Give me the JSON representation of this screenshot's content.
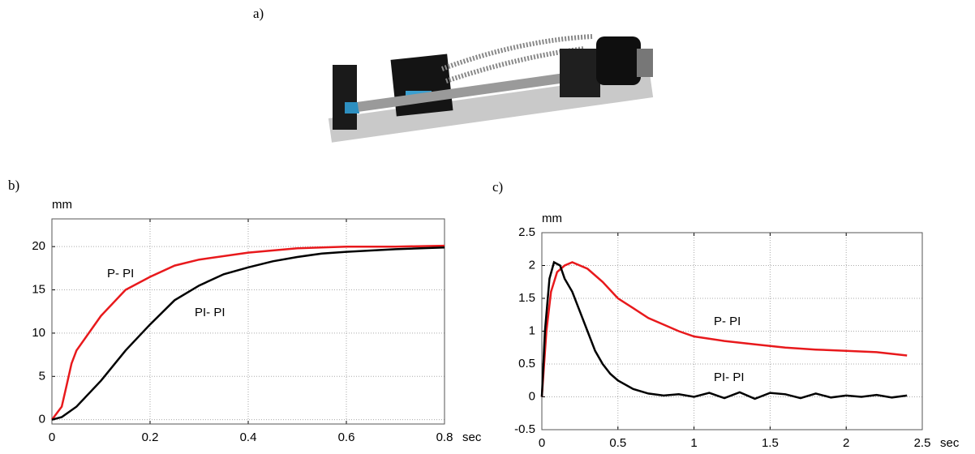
{
  "panel_labels": [
    "a)",
    "b)",
    "c)"
  ],
  "chart_data": [
    {
      "type": "line",
      "ylabel": "mm",
      "xlabel": "sec",
      "xlim": [
        0,
        0.8
      ],
      "xticks": [
        0,
        0.2,
        0.4,
        0.6,
        0.8
      ],
      "ylim": [
        -0.5,
        23.2
      ],
      "yticks": [
        0,
        5,
        10,
        15,
        20
      ],
      "grid": true,
      "annotations": [
        "P- PI",
        "PI- PI"
      ],
      "series": [
        {
          "name": "P- PI",
          "color": "#e8191c",
          "x": [
            0,
            0.02,
            0.03,
            0.04,
            0.05,
            0.1,
            0.15,
            0.2,
            0.25,
            0.3,
            0.4,
            0.5,
            0.6,
            0.7,
            0.8
          ],
          "values": [
            0,
            1.5,
            4,
            6.5,
            8,
            12,
            15,
            16.5,
            17.8,
            18.5,
            19.3,
            19.8,
            20,
            20,
            20.1
          ]
        },
        {
          "name": "PI- PI",
          "color": "#000000",
          "x": [
            0,
            0.02,
            0.05,
            0.1,
            0.15,
            0.2,
            0.25,
            0.3,
            0.35,
            0.4,
            0.45,
            0.5,
            0.55,
            0.6,
            0.7,
            0.8
          ],
          "values": [
            0,
            0.3,
            1.5,
            4.5,
            8,
            11,
            13.8,
            15.5,
            16.8,
            17.6,
            18.3,
            18.8,
            19.2,
            19.4,
            19.7,
            19.9
          ]
        }
      ]
    },
    {
      "type": "line",
      "ylabel": "mm",
      "xlabel": "sec",
      "xlim": [
        0,
        2.5
      ],
      "xticks": [
        0,
        0.5,
        1,
        1.5,
        2,
        2.5
      ],
      "ylim": [
        -0.5,
        2.5
      ],
      "yticks": [
        -0.5,
        0,
        0.5,
        1,
        1.5,
        2,
        2.5
      ],
      "grid": true,
      "annotations": [
        "P- PI",
        "PI- PI"
      ],
      "series": [
        {
          "name": "P- PI",
          "color": "#e8191c",
          "x": [
            0,
            0.03,
            0.06,
            0.1,
            0.15,
            0.2,
            0.3,
            0.4,
            0.5,
            0.6,
            0.7,
            0.8,
            0.9,
            1.0,
            1.2,
            1.4,
            1.6,
            1.8,
            2.0,
            2.2,
            2.4
          ],
          "values": [
            0,
            1,
            1.6,
            1.9,
            2.0,
            2.05,
            1.95,
            1.75,
            1.5,
            1.35,
            1.2,
            1.1,
            1.0,
            0.92,
            0.85,
            0.8,
            0.75,
            0.72,
            0.7,
            0.68,
            0.63
          ]
        },
        {
          "name": "PI- PI",
          "color": "#000000",
          "x": [
            0,
            0.02,
            0.05,
            0.08,
            0.12,
            0.15,
            0.2,
            0.25,
            0.3,
            0.35,
            0.4,
            0.45,
            0.5,
            0.6,
            0.7,
            0.8,
            0.9,
            1.0,
            1.1,
            1.2,
            1.3,
            1.4,
            1.5,
            1.6,
            1.7,
            1.8,
            1.9,
            2.0,
            2.1,
            2.2,
            2.3,
            2.4
          ],
          "values": [
            0,
            1,
            1.8,
            2.05,
            2.0,
            1.8,
            1.6,
            1.3,
            1.0,
            0.7,
            0.5,
            0.35,
            0.25,
            0.12,
            0.05,
            0.02,
            0.04,
            0,
            0.06,
            -0.02,
            0.07,
            -0.03,
            0.06,
            0.04,
            -0.02,
            0.05,
            -0.01,
            0.02,
            0,
            0.03,
            -0.01,
            0.02
          ]
        }
      ]
    }
  ]
}
